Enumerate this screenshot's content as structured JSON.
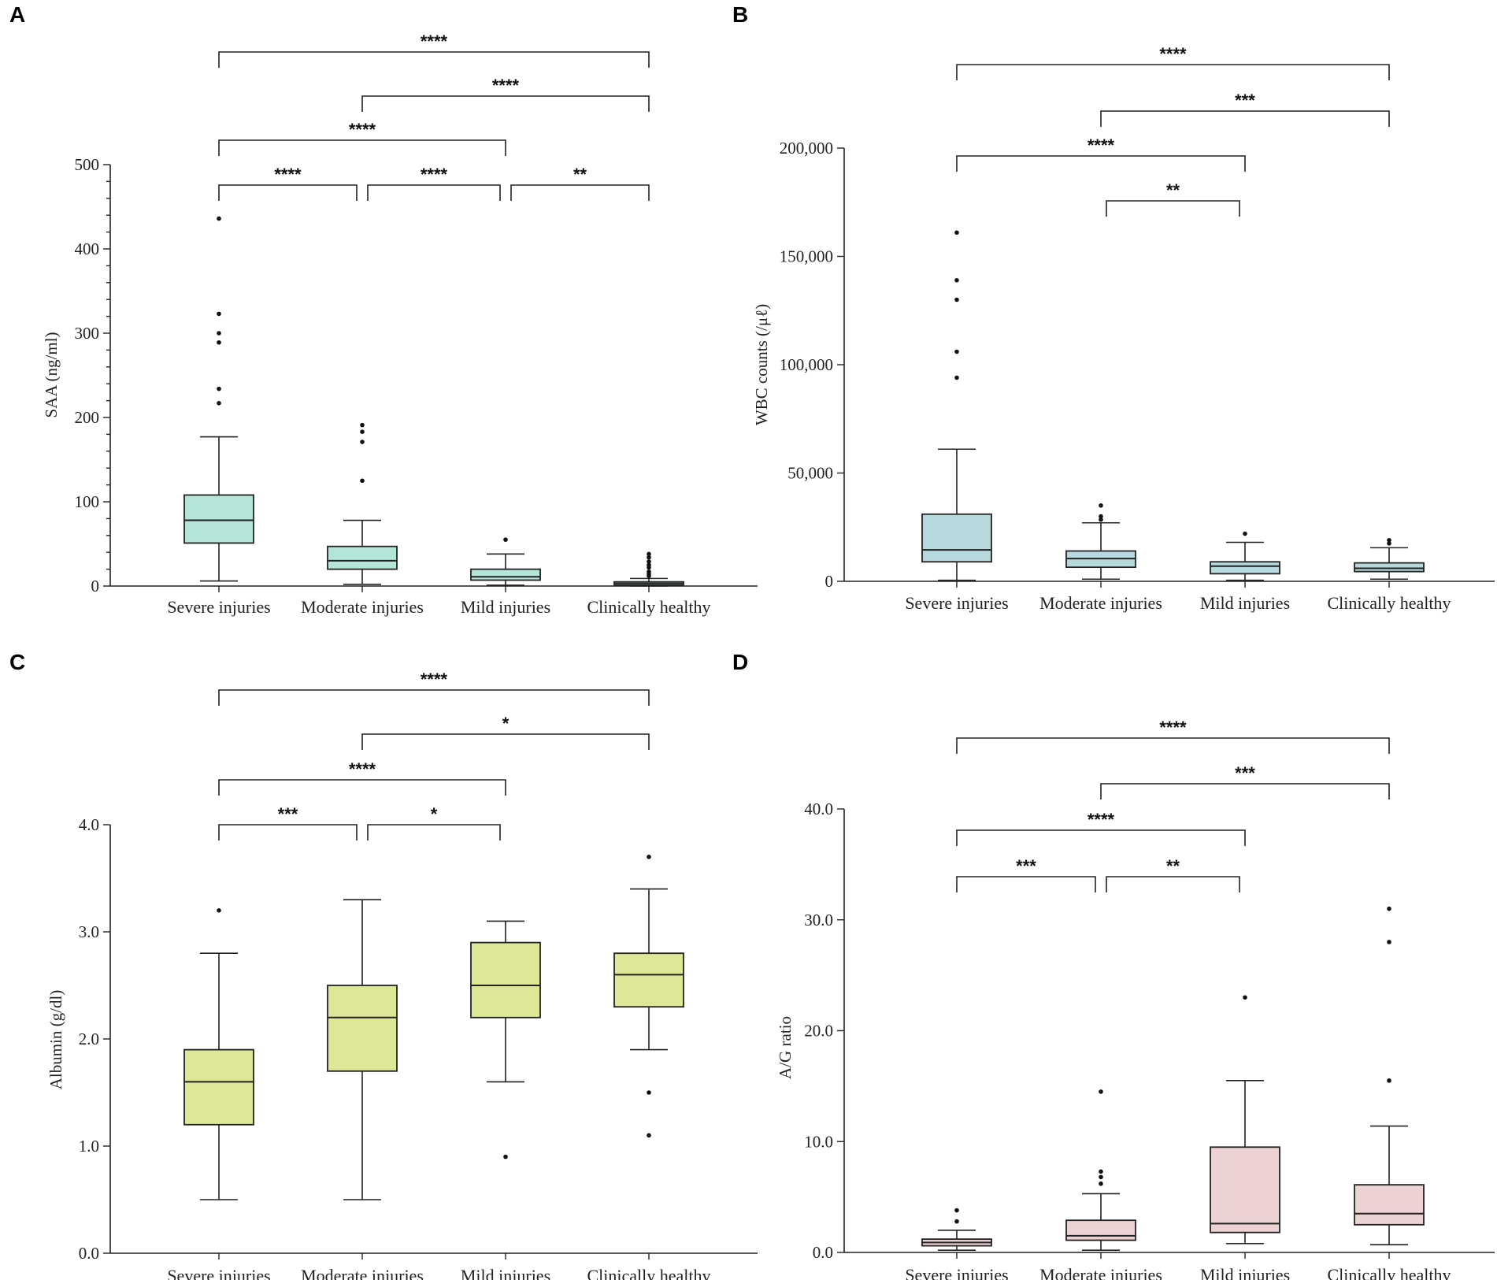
{
  "chart_data": [
    {
      "panel": "A",
      "type": "box",
      "ylabel": "SAA (ng/ml)",
      "ylim": [
        0,
        500
      ],
      "yticks": [
        0,
        100,
        200,
        300,
        400,
        500
      ],
      "ytick_labels": [
        "0",
        "100",
        "200",
        "300",
        "400",
        "500"
      ],
      "minor_ticks": 5,
      "color": "#b3e6d8",
      "categories": [
        "Severe injuries",
        "Moderate injuries",
        "Mild injuries",
        "Clinically healthy"
      ],
      "boxes": [
        {
          "whisker_low": 6,
          "q1": 51,
          "median": 78,
          "q3": 108,
          "whisker_high": 177,
          "outliers": [
            217,
            234,
            289,
            300,
            323,
            436
          ]
        },
        {
          "whisker_low": 2,
          "q1": 20,
          "median": 30,
          "q3": 47,
          "whisker_high": 78,
          "outliers": [
            125,
            171,
            183,
            191
          ]
        },
        {
          "whisker_low": 1,
          "q1": 7,
          "median": 11,
          "q3": 20,
          "whisker_high": 38,
          "outliers": [
            55
          ]
        },
        {
          "whisker_low": 0,
          "q1": 1,
          "median": 3,
          "q3": 5,
          "whisker_high": 9,
          "outliers": [
            12,
            14,
            17,
            22,
            25,
            29,
            34,
            38
          ]
        }
      ],
      "significance": [
        {
          "from": 0,
          "to": 3,
          "label": "****",
          "level": 5
        },
        {
          "from": 1,
          "to": 3,
          "label": "****",
          "level": 4
        },
        {
          "from": 0,
          "to": 2,
          "label": "****",
          "level": 3
        },
        {
          "from": 0,
          "to": 1,
          "label": "****",
          "level": 2
        },
        {
          "from": 1,
          "to": 2,
          "label": "****",
          "level": 2
        },
        {
          "from": 2,
          "to": 3,
          "label": "**",
          "level": 2
        }
      ]
    },
    {
      "panel": "B",
      "type": "box",
      "ylabel": "WBC counts (/μℓ)",
      "ylim": [
        0,
        200000
      ],
      "yticks": [
        0,
        50000,
        100000,
        150000,
        200000
      ],
      "ytick_labels": [
        "0",
        "50,000",
        "100,000",
        "150,000",
        "200,000"
      ],
      "minor_ticks": 0,
      "color": "#b5d9dc",
      "categories": [
        "Severe injuries",
        "Moderate injuries",
        "Mild injuries",
        "Clinically healthy"
      ],
      "boxes": [
        {
          "whisker_low": 500,
          "q1": 9000,
          "median": 14500,
          "q3": 31000,
          "whisker_high": 61000,
          "outliers": [
            94000,
            106000,
            130000,
            139000,
            161000
          ]
        },
        {
          "whisker_low": 1000,
          "q1": 6500,
          "median": 10500,
          "q3": 14000,
          "whisker_high": 27000,
          "outliers": [
            28500,
            30000,
            35000
          ]
        },
        {
          "whisker_low": 500,
          "q1": 3500,
          "median": 7000,
          "q3": 9000,
          "whisker_high": 18000,
          "outliers": [
            22000
          ]
        },
        {
          "whisker_low": 1000,
          "q1": 4500,
          "median": 6000,
          "q3": 8500,
          "whisker_high": 15500,
          "outliers": [
            17500,
            19000
          ]
        }
      ],
      "significance": [
        {
          "from": 0,
          "to": 3,
          "label": "****",
          "level": 5
        },
        {
          "from": 1,
          "to": 3,
          "label": "***",
          "level": 4
        },
        {
          "from": 0,
          "to": 2,
          "label": "****",
          "level": 3
        },
        {
          "from": 1,
          "to": 2,
          "label": "**",
          "level": 2
        }
      ]
    },
    {
      "panel": "C",
      "type": "box",
      "ylabel": "Albumin (g/dl)",
      "ylim": [
        0,
        4
      ],
      "yticks": [
        0,
        1,
        2,
        3,
        4
      ],
      "ytick_labels": [
        "0.0",
        "1.0",
        "2.0",
        "3.0",
        "4.0"
      ],
      "minor_ticks": 0,
      "color": "#dde795",
      "categories": [
        "Severe injuries",
        "Moderate injuries",
        "Mild injuries",
        "Clinically healthy"
      ],
      "boxes": [
        {
          "whisker_low": 0.5,
          "q1": 1.2,
          "median": 1.6,
          "q3": 1.9,
          "whisker_high": 2.8,
          "outliers": [
            3.2
          ]
        },
        {
          "whisker_low": 0.5,
          "q1": 1.7,
          "median": 2.2,
          "q3": 2.5,
          "whisker_high": 3.3,
          "outliers": []
        },
        {
          "whisker_low": 1.6,
          "q1": 2.2,
          "median": 2.5,
          "q3": 2.9,
          "whisker_high": 3.1,
          "outliers": [
            0.9
          ]
        },
        {
          "whisker_low": 1.9,
          "q1": 2.3,
          "median": 2.6,
          "q3": 2.8,
          "whisker_high": 3.4,
          "outliers": [
            1.1,
            1.5,
            3.7
          ]
        }
      ],
      "significance": [
        {
          "from": 0,
          "to": 3,
          "label": "****",
          "level": 5
        },
        {
          "from": 1,
          "to": 3,
          "label": "*",
          "level": 4
        },
        {
          "from": 0,
          "to": 2,
          "label": "****",
          "level": 3
        },
        {
          "from": 0,
          "to": 1,
          "label": "***",
          "level": 2
        },
        {
          "from": 1,
          "to": 2,
          "label": "*",
          "level": 2
        }
      ]
    },
    {
      "panel": "D",
      "type": "box",
      "ylabel": "A/G ratio",
      "ylim": [
        0,
        40
      ],
      "yticks": [
        0,
        10,
        20,
        30,
        40
      ],
      "ytick_labels": [
        "0.0",
        "10.0",
        "20.0",
        "30.0",
        "40.0"
      ],
      "minor_ticks": 0,
      "color": "#ecd2d2",
      "categories": [
        "Severe injuries",
        "Moderate injuries",
        "Mild injuries",
        "Clinically healthy"
      ],
      "boxes": [
        {
          "whisker_low": 0.2,
          "q1": 0.6,
          "median": 0.9,
          "q3": 1.2,
          "whisker_high": 2.0,
          "outliers": [
            2.8,
            3.8
          ]
        },
        {
          "whisker_low": 0.2,
          "q1": 1.1,
          "median": 1.5,
          "q3": 2.9,
          "whisker_high": 5.3,
          "outliers": [
            6.2,
            6.8,
            7.3,
            14.5
          ]
        },
        {
          "whisker_low": 0.8,
          "q1": 1.8,
          "median": 2.6,
          "q3": 9.5,
          "whisker_high": 15.5,
          "outliers": [
            23.0
          ]
        },
        {
          "whisker_low": 0.7,
          "q1": 2.5,
          "median": 3.5,
          "q3": 6.1,
          "whisker_high": 11.4,
          "outliers": [
            15.5,
            28.0,
            31.0
          ]
        }
      ],
      "significance": [
        {
          "from": 0,
          "to": 3,
          "label": "****",
          "level": 5
        },
        {
          "from": 1,
          "to": 3,
          "label": "***",
          "level": 4
        },
        {
          "from": 0,
          "to": 2,
          "label": "****",
          "level": 3
        },
        {
          "from": 0,
          "to": 1,
          "label": "***",
          "level": 2
        },
        {
          "from": 1,
          "to": 2,
          "label": "**",
          "level": 2
        }
      ]
    }
  ]
}
